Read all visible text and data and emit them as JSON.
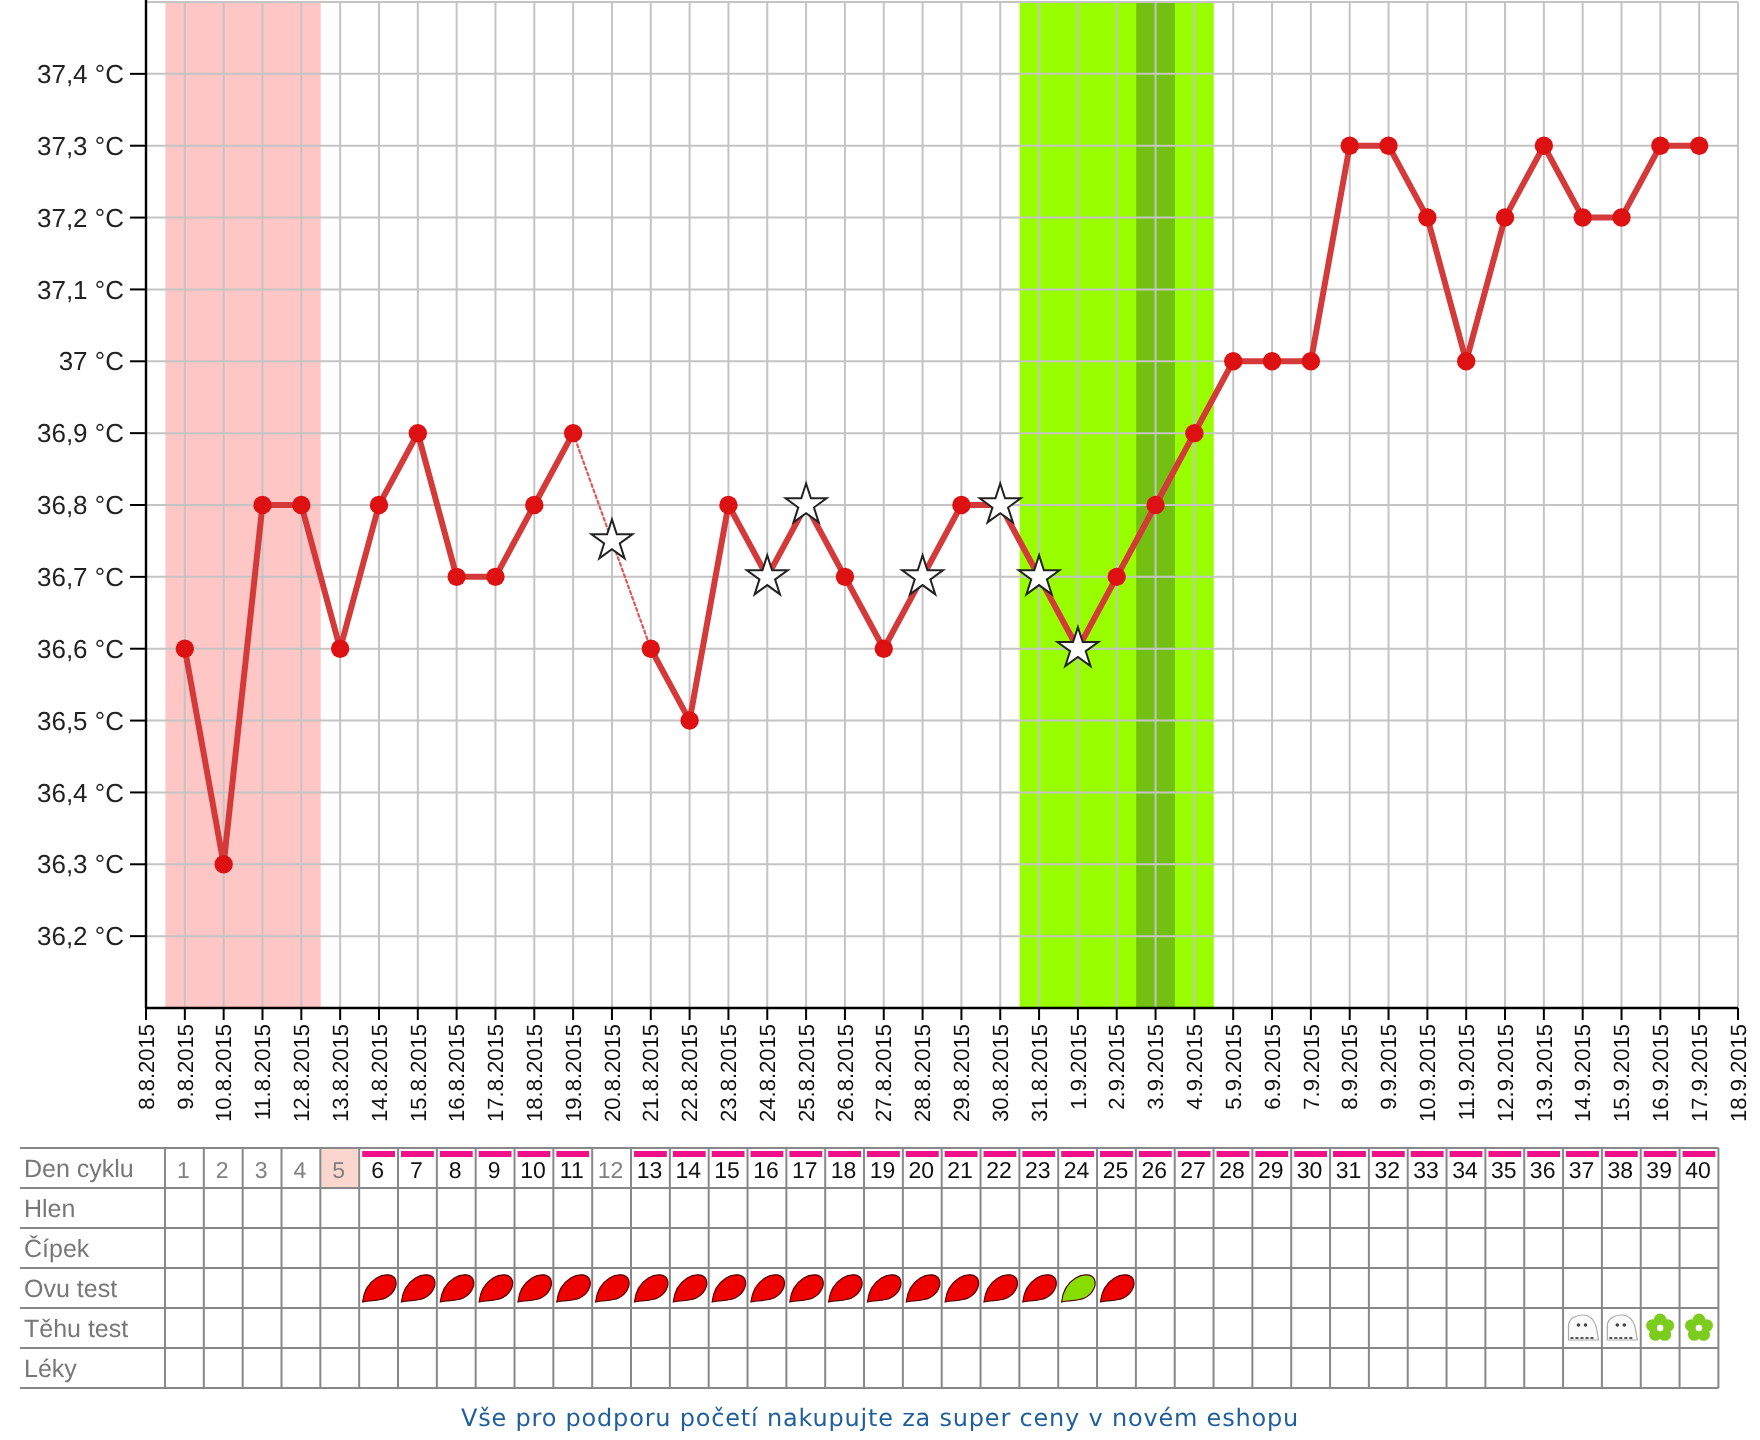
{
  "chart_data": [
    {
      "type": "line",
      "xlim": [
        "2015-08-08",
        "2015-09-18"
      ],
      "ylim": [
        36.1,
        37.5
      ],
      "xticks": [
        {
          "value": "2015-08-08",
          "label": "8.8.2015"
        },
        {
          "value": "2015-08-09",
          "label": "9.8.2015"
        },
        {
          "value": "2015-08-10",
          "label": "10.8.2015"
        },
        {
          "value": "2015-08-11",
          "label": "11.8.2015"
        },
        {
          "value": "2015-08-12",
          "label": "12.8.2015"
        },
        {
          "value": "2015-08-13",
          "label": "13.8.2015"
        },
        {
          "value": "2015-08-14",
          "label": "14.8.2015"
        },
        {
          "value": "2015-08-15",
          "label": "15.8.2015"
        },
        {
          "value": "2015-08-16",
          "label": "16.8.2015"
        },
        {
          "value": "2015-08-17",
          "label": "17.8.2015"
        },
        {
          "value": "2015-08-18",
          "label": "18.8.2015"
        },
        {
          "value": "2015-08-19",
          "label": "19.8.2015"
        },
        {
          "value": "2015-08-20",
          "label": "20.8.2015"
        },
        {
          "value": "2015-08-21",
          "label": "21.8.2015"
        },
        {
          "value": "2015-08-22",
          "label": "22.8.2015"
        },
        {
          "value": "2015-08-23",
          "label": "23.8.2015"
        },
        {
          "value": "2015-08-24",
          "label": "24.8.2015"
        },
        {
          "value": "2015-08-25",
          "label": "25.8.2015"
        },
        {
          "value": "2015-08-26",
          "label": "26.8.2015"
        },
        {
          "value": "2015-08-27",
          "label": "27.8.2015"
        },
        {
          "value": "2015-08-28",
          "label": "28.8.2015"
        },
        {
          "value": "2015-08-29",
          "label": "29.8.2015"
        },
        {
          "value": "2015-08-30",
          "label": "30.8.2015"
        },
        {
          "value": "2015-08-31",
          "label": "31.8.2015"
        },
        {
          "value": "2015-09-01",
          "label": "1.9.2015"
        },
        {
          "value": "2015-09-02",
          "label": "2.9.2015"
        },
        {
          "value": "2015-09-03",
          "label": "3.9.2015"
        },
        {
          "value": "2015-09-04",
          "label": "4.9.2015"
        },
        {
          "value": "2015-09-05",
          "label": "5.9.2015"
        },
        {
          "value": "2015-09-06",
          "label": "6.9.2015"
        },
        {
          "value": "2015-09-07",
          "label": "7.9.2015"
        },
        {
          "value": "2015-09-08",
          "label": "8.9.2015"
        },
        {
          "value": "2015-09-09",
          "label": "9.9.2015"
        },
        {
          "value": "2015-09-10",
          "label": "10.9.2015"
        },
        {
          "value": "2015-09-11",
          "label": "11.9.2015"
        },
        {
          "value": "2015-09-12",
          "label": "12.9.2015"
        },
        {
          "value": "2015-09-13",
          "label": "13.9.2015"
        },
        {
          "value": "2015-09-14",
          "label": "14.9.2015"
        },
        {
          "value": "2015-09-15",
          "label": "15.9.2015"
        },
        {
          "value": "2015-09-16",
          "label": "16.9.2015"
        },
        {
          "value": "2015-09-17",
          "label": "17.9.2015"
        },
        {
          "value": "2015-09-18",
          "label": "18.9.2015"
        }
      ],
      "yticks": [
        {
          "value": 36.2,
          "label": "36,2 °C"
        },
        {
          "value": 36.3,
          "label": "36,3 °C"
        },
        {
          "value": 36.4,
          "label": "36,4 °C"
        },
        {
          "value": 36.5,
          "label": "36,5 °C"
        },
        {
          "value": 36.6,
          "label": "36,6 °C"
        },
        {
          "value": 36.7,
          "label": "36,7 °C"
        },
        {
          "value": 36.8,
          "label": "36,8 °C"
        },
        {
          "value": 36.9,
          "label": "36,9 °C"
        },
        {
          "value": 37,
          "label": "37 °C"
        },
        {
          "value": 37.1,
          "label": "37,1 °C"
        },
        {
          "value": 37.2,
          "label": "37,2 °C"
        },
        {
          "value": 37.3,
          "label": "37,3 °C"
        },
        {
          "value": 37.4,
          "label": "37,4 °C"
        }
      ],
      "grid": true,
      "bands": [
        {
          "axis": "x",
          "from": "2015-08-08T12:00",
          "to": "2015-08-12T12:00",
          "color": "#ffc6c6"
        },
        {
          "axis": "x",
          "from": "2015-08-30T12:00",
          "to": "2015-09-04T12:00",
          "color": "#99ff00"
        },
        {
          "axis": "x",
          "from": "2015-09-02T12:00",
          "to": "2015-09-03T12:00",
          "color": "#74c012"
        }
      ],
      "series": [
        {
          "type": "line",
          "color": "#d43a3a",
          "marker": "none",
          "line_style": "solid",
          "x": [
            "2015-08-09",
            "2015-08-10",
            "2015-08-11",
            "2015-08-12",
            "2015-08-13",
            "2015-08-14",
            "2015-08-15",
            "2015-08-16",
            "2015-08-17",
            "2015-08-18",
            "2015-08-19",
            "2015-08-20",
            "2015-08-21",
            "2015-08-22",
            "2015-08-23",
            "2015-08-24",
            "2015-08-25",
            "2015-08-26",
            "2015-08-27",
            "2015-08-28",
            "2015-08-29",
            "2015-08-30",
            "2015-08-31",
            "2015-09-01",
            "2015-09-02",
            "2015-09-03",
            "2015-09-04",
            "2015-09-05",
            "2015-09-06",
            "2015-09-07",
            "2015-09-08",
            "2015-09-09",
            "2015-09-10",
            "2015-09-11",
            "2015-09-12",
            "2015-09-13",
            "2015-09-14",
            "2015-09-15",
            "2015-09-16",
            "2015-09-17"
          ],
          "values": [
            36.6,
            36.3,
            36.8,
            36.8,
            36.6,
            36.8,
            36.9,
            36.7,
            36.7,
            36.8,
            36.9,
            null,
            36.6,
            36.5,
            36.8,
            36.7,
            36.8,
            36.7,
            36.6,
            36.7,
            36.8,
            36.8,
            36.7,
            36.6,
            36.7,
            36.8,
            36.9,
            37.0,
            37.0,
            37.0,
            37.3,
            37.3,
            37.2,
            37.0,
            37.2,
            37.3,
            37.2,
            37.2,
            37.3,
            37.3
          ]
        },
        {
          "type": "line",
          "color": "#e05a5a",
          "marker": "none",
          "line_style": "dotted",
          "x": [
            "2015-08-19",
            "2015-08-20",
            "2015-08-21"
          ],
          "values": [
            36.9,
            36.75,
            36.6
          ]
        },
        {
          "type": "scatter",
          "color": "#dd1111",
          "marker": "circle",
          "x": [
            "2015-08-09",
            "2015-08-10",
            "2015-08-11",
            "2015-08-12",
            "2015-08-13",
            "2015-08-14",
            "2015-08-15",
            "2015-08-16",
            "2015-08-17",
            "2015-08-18",
            "2015-08-19",
            "2015-08-21",
            "2015-08-22",
            "2015-08-23",
            "2015-08-26",
            "2015-08-27",
            "2015-08-29",
            "2015-09-02",
            "2015-09-03",
            "2015-09-04",
            "2015-09-05",
            "2015-09-06",
            "2015-09-07",
            "2015-09-08",
            "2015-09-09",
            "2015-09-10",
            "2015-09-11",
            "2015-09-12",
            "2015-09-13",
            "2015-09-14",
            "2015-09-15",
            "2015-09-16",
            "2015-09-17"
          ],
          "values": [
            36.6,
            36.3,
            36.8,
            36.8,
            36.6,
            36.8,
            36.9,
            36.7,
            36.7,
            36.8,
            36.9,
            36.6,
            36.5,
            36.8,
            36.7,
            36.6,
            36.8,
            36.7,
            36.8,
            36.9,
            37.0,
            37.0,
            37.0,
            37.3,
            37.3,
            37.2,
            37.0,
            37.2,
            37.3,
            37.2,
            37.2,
            37.3,
            37.3
          ]
        },
        {
          "type": "scatter",
          "color": "#ffffff",
          "marker": "star",
          "x": [
            "2015-08-20",
            "2015-08-24",
            "2015-08-25",
            "2015-08-28",
            "2015-08-30",
            "2015-08-31",
            "2015-09-01"
          ],
          "values": [
            36.75,
            36.7,
            36.8,
            36.7,
            36.8,
            36.7,
            36.6
          ]
        }
      ]
    },
    {
      "type": "heatmap",
      "xlim": [
        0.5,
        40.5
      ],
      "xticks": [
        1,
        2,
        3,
        4,
        5,
        6,
        7,
        8,
        9,
        10,
        11,
        12,
        13,
        14,
        15,
        16,
        17,
        18,
        19,
        20,
        21,
        22,
        23,
        24,
        25,
        26,
        27,
        28,
        29,
        30,
        31,
        32,
        33,
        34,
        35,
        36,
        37,
        38,
        39,
        40
      ],
      "xlabel": "Den cyklu",
      "y_categories": [
        "Hlen",
        "Čípek",
        "Ovu test",
        "Těhu test",
        "Léky"
      ],
      "grid": true,
      "cells": [
        [
          null,
          null,
          null,
          null,
          null,
          null,
          null,
          null,
          null,
          null,
          null,
          null,
          null,
          null,
          null,
          null,
          null,
          null,
          null,
          null,
          null,
          null,
          null,
          null,
          null,
          null,
          null,
          null,
          null,
          null,
          null,
          null,
          null,
          null,
          null,
          null,
          null,
          null,
          null,
          null
        ],
        [
          null,
          null,
          null,
          null,
          null,
          null,
          null,
          null,
          null,
          null,
          null,
          null,
          null,
          null,
          null,
          null,
          null,
          null,
          null,
          null,
          null,
          null,
          null,
          null,
          null,
          null,
          null,
          null,
          null,
          null,
          null,
          null,
          null,
          null,
          null,
          null,
          null,
          null,
          null,
          null
        ],
        [
          null,
          null,
          null,
          null,
          null,
          null,
          null,
          null,
          null,
          null,
          null,
          null,
          null,
          null,
          null,
          null,
          null,
          null,
          null,
          null,
          null,
          null,
          null,
          null,
          null,
          null,
          null,
          null,
          null,
          null,
          null,
          null,
          null,
          null,
          null,
          null,
          null,
          null,
          null,
          null
        ],
        [
          null,
          null,
          null,
          null,
          null,
          null,
          null,
          null,
          null,
          null,
          null,
          null,
          null,
          null,
          null,
          null,
          null,
          null,
          null,
          null,
          null,
          null,
          null,
          null,
          null,
          null,
          null,
          null,
          null,
          null,
          null,
          null,
          null,
          null,
          null,
          null,
          null,
          null,
          null,
          null
        ],
        [
          null,
          null,
          null,
          null,
          null,
          null,
          null,
          null,
          null,
          null,
          null,
          null,
          null,
          null,
          null,
          null,
          null,
          null,
          null,
          null,
          null,
          null,
          null,
          null,
          null,
          null,
          null,
          null,
          null,
          null,
          null,
          null,
          null,
          null,
          null,
          null,
          null,
          null,
          null,
          null
        ]
      ],
      "annotations": [
        "Vše pro podporu početí nakupujte za super ceny v novém eshopu"
      ]
    }
  ]
}
